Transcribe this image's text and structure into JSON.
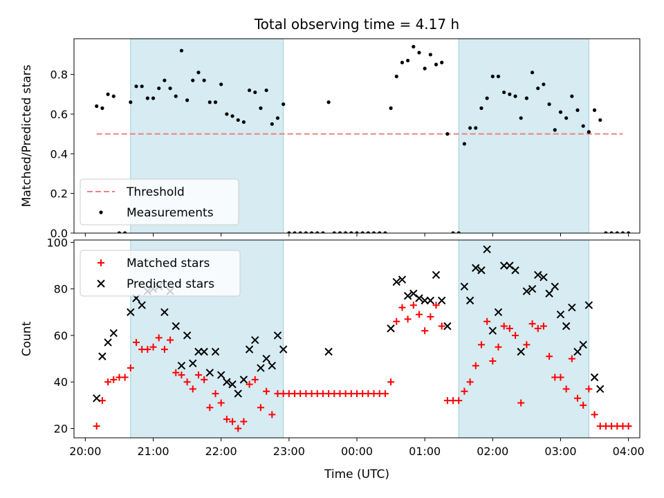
{
  "figure": {
    "title": "Total observing time = 4.17 h"
  },
  "chart_data": [
    {
      "type": "scatter",
      "panel": "top",
      "ylabel": "Matched/Predicted stars",
      "ylim": [
        0,
        0.98
      ],
      "xlim": [
        -10,
        490
      ],
      "yticks": [
        0,
        0.2,
        0.4,
        0.6,
        0.8
      ],
      "ytick_labels": [
        "0.0",
        "0.2",
        "0.4",
        "0.6",
        "0.8"
      ],
      "shaded_regions": [
        [
          40,
          175
        ],
        [
          330,
          445
        ]
      ],
      "threshold": {
        "name": "Threshold",
        "value": 0.5,
        "x_range": [
          10,
          475
        ]
      },
      "legend": {
        "placement": "lower-left",
        "entries": [
          "Threshold",
          "Measurements"
        ]
      },
      "series": [
        {
          "name": "Measurements",
          "points": [
            [
              10,
              0.64
            ],
            [
              15,
              0.63
            ],
            [
              20,
              0.7
            ],
            [
              25,
              0.69
            ],
            [
              30,
              0
            ],
            [
              35,
              0
            ],
            [
              40,
              0.66
            ],
            [
              45,
              0.74
            ],
            [
              50,
              0.74
            ],
            [
              55,
              0.68
            ],
            [
              60,
              0.68
            ],
            [
              65,
              0.73
            ],
            [
              70,
              0.77
            ],
            [
              75,
              0.73
            ],
            [
              80,
              0.69
            ],
            [
              85,
              0.92
            ],
            [
              90,
              0.67
            ],
            [
              95,
              0.77
            ],
            [
              100,
              0.81
            ],
            [
              105,
              0.77
            ],
            [
              110,
              0.66
            ],
            [
              115,
              0.66
            ],
            [
              120,
              0.75
            ],
            [
              125,
              0.6
            ],
            [
              130,
              0.59
            ],
            [
              135,
              0.57
            ],
            [
              140,
              0.56
            ],
            [
              145,
              0.72
            ],
            [
              150,
              0.71
            ],
            [
              155,
              0.63
            ],
            [
              160,
              0.72
            ],
            [
              165,
              0.55
            ],
            [
              170,
              0.58
            ],
            [
              175,
              0.65
            ],
            [
              180,
              0
            ],
            [
              185,
              0
            ],
            [
              190,
              0
            ],
            [
              195,
              0
            ],
            [
              200,
              0
            ],
            [
              205,
              0
            ],
            [
              210,
              0
            ],
            [
              215,
              0.66
            ],
            [
              220,
              0
            ],
            [
              225,
              0
            ],
            [
              230,
              0
            ],
            [
              235,
              0
            ],
            [
              240,
              0
            ],
            [
              245,
              0
            ],
            [
              250,
              0
            ],
            [
              255,
              0
            ],
            [
              260,
              0
            ],
            [
              265,
              0
            ],
            [
              270,
              0.63
            ],
            [
              275,
              0.79
            ],
            [
              280,
              0.86
            ],
            [
              285,
              0.87
            ],
            [
              290,
              0.94
            ],
            [
              295,
              0.91
            ],
            [
              300,
              0.83
            ],
            [
              305,
              0.9
            ],
            [
              310,
              0.85
            ],
            [
              315,
              0.86
            ],
            [
              320,
              0.5
            ],
            [
              325,
              0
            ],
            [
              330,
              0
            ],
            [
              335,
              0.45
            ],
            [
              340,
              0.53
            ],
            [
              345,
              0.53
            ],
            [
              350,
              0.63
            ],
            [
              355,
              0.68
            ],
            [
              360,
              0.79
            ],
            [
              365,
              0.79
            ],
            [
              370,
              0.71
            ],
            [
              375,
              0.7
            ],
            [
              380,
              0.69
            ],
            [
              385,
              0.58
            ],
            [
              390,
              0.68
            ],
            [
              395,
              0.81
            ],
            [
              400,
              0.73
            ],
            [
              405,
              0.75
            ],
            [
              410,
              0.65
            ],
            [
              415,
              0.52
            ],
            [
              420,
              0.61
            ],
            [
              425,
              0.58
            ],
            [
              430,
              0.69
            ],
            [
              435,
              0.62
            ],
            [
              440,
              0.54
            ],
            [
              445,
              0.51
            ],
            [
              450,
              0.62
            ],
            [
              455,
              0.57
            ],
            [
              460,
              0
            ],
            [
              465,
              0
            ],
            [
              470,
              0
            ],
            [
              475,
              0
            ],
            [
              480,
              0
            ]
          ]
        }
      ]
    },
    {
      "type": "scatter",
      "panel": "bottom",
      "ylabel": "Count",
      "xlabel": "Time (UTC)",
      "ylim": [
        16,
        101
      ],
      "xlim": [
        -10,
        490
      ],
      "yticks": [
        20,
        40,
        60,
        80,
        100
      ],
      "ytick_labels": [
        "20",
        "40",
        "60",
        "80",
        "100"
      ],
      "xticks": [
        0,
        60,
        120,
        180,
        240,
        300,
        360,
        420,
        480
      ],
      "xtick_labels": [
        "20:00",
        "21:00",
        "22:00",
        "23:00",
        "00:00",
        "01:00",
        "02:00",
        "03:00",
        "04:00"
      ],
      "shaded_regions": [
        [
          40,
          175
        ],
        [
          330,
          445
        ]
      ],
      "legend": {
        "placement": "upper-left",
        "entries": [
          "Matched stars",
          "Predicted stars"
        ]
      },
      "series": [
        {
          "name": "Matched stars",
          "color": "#ff0000",
          "marker": "plus",
          "points": [
            [
              10,
              21
            ],
            [
              15,
              32
            ],
            [
              20,
              40
            ],
            [
              25,
              41
            ],
            [
              30,
              42
            ],
            [
              35,
              42
            ],
            [
              40,
              46
            ],
            [
              45,
              57
            ],
            [
              50,
              54
            ],
            [
              55,
              54
            ],
            [
              60,
              55
            ],
            [
              65,
              59
            ],
            [
              70,
              54
            ],
            [
              75,
              58
            ],
            [
              80,
              44
            ],
            [
              85,
              43
            ],
            [
              90,
              40
            ],
            [
              95,
              37
            ],
            [
              100,
              43
            ],
            [
              105,
              41
            ],
            [
              110,
              29
            ],
            [
              115,
              35
            ],
            [
              120,
              31
            ],
            [
              125,
              24
            ],
            [
              130,
              23
            ],
            [
              135,
              20
            ],
            [
              140,
              23
            ],
            [
              145,
              39
            ],
            [
              150,
              41
            ],
            [
              155,
              29
            ],
            [
              160,
              36
            ],
            [
              165,
              26
            ],
            [
              170,
              35
            ],
            [
              175,
              35
            ],
            [
              180,
              35
            ],
            [
              185,
              35
            ],
            [
              190,
              35
            ],
            [
              195,
              35
            ],
            [
              200,
              35
            ],
            [
              205,
              35
            ],
            [
              210,
              35
            ],
            [
              215,
              35
            ],
            [
              220,
              35
            ],
            [
              225,
              35
            ],
            [
              230,
              35
            ],
            [
              235,
              35
            ],
            [
              240,
              35
            ],
            [
              245,
              35
            ],
            [
              250,
              35
            ],
            [
              255,
              35
            ],
            [
              260,
              35
            ],
            [
              265,
              35
            ],
            [
              270,
              40
            ],
            [
              275,
              66
            ],
            [
              280,
              72
            ],
            [
              285,
              67
            ],
            [
              290,
              73
            ],
            [
              295,
              69
            ],
            [
              300,
              62
            ],
            [
              305,
              68
            ],
            [
              310,
              73
            ],
            [
              315,
              64
            ],
            [
              320,
              32
            ],
            [
              325,
              32
            ],
            [
              330,
              32
            ],
            [
              335,
              36
            ],
            [
              340,
              40
            ],
            [
              345,
              47
            ],
            [
              350,
              56
            ],
            [
              355,
              66
            ],
            [
              360,
              49
            ],
            [
              365,
              55
            ],
            [
              370,
              64
            ],
            [
              375,
              63
            ],
            [
              380,
              60
            ],
            [
              385,
              31
            ],
            [
              390,
              56
            ],
            [
              395,
              65
            ],
            [
              400,
              63
            ],
            [
              405,
              64
            ],
            [
              410,
              51
            ],
            [
              415,
              42
            ],
            [
              420,
              42
            ],
            [
              425,
              37
            ],
            [
              430,
              50
            ],
            [
              435,
              33
            ],
            [
              440,
              30
            ],
            [
              445,
              37
            ],
            [
              450,
              26
            ],
            [
              455,
              21
            ],
            [
              460,
              21
            ],
            [
              465,
              21
            ],
            [
              470,
              21
            ],
            [
              475,
              21
            ],
            [
              480,
              21
            ]
          ]
        },
        {
          "name": "Predicted stars",
          "color": "#000000",
          "marker": "x",
          "points": [
            [
              10,
              33
            ],
            [
              15,
              51
            ],
            [
              20,
              57
            ],
            [
              25,
              61
            ],
            [
              40,
              70
            ],
            [
              45,
              76
            ],
            [
              50,
              73
            ],
            [
              55,
              79
            ],
            [
              60,
              80
            ],
            [
              65,
              81
            ],
            [
              70,
              70
            ],
            [
              75,
              79
            ],
            [
              80,
              64
            ],
            [
              85,
              47
            ],
            [
              90,
              60
            ],
            [
              95,
              48
            ],
            [
              100,
              53
            ],
            [
              105,
              53
            ],
            [
              110,
              44
            ],
            [
              115,
              53
            ],
            [
              120,
              43
            ],
            [
              125,
              40
            ],
            [
              130,
              39
            ],
            [
              135,
              35
            ],
            [
              140,
              41
            ],
            [
              145,
              54
            ],
            [
              150,
              58
            ],
            [
              155,
              46
            ],
            [
              160,
              50
            ],
            [
              165,
              47
            ],
            [
              170,
              60
            ],
            [
              175,
              54
            ],
            [
              215,
              53
            ],
            [
              270,
              63
            ],
            [
              275,
              83
            ],
            [
              280,
              84
            ],
            [
              285,
              77
            ],
            [
              290,
              78
            ],
            [
              295,
              76
            ],
            [
              300,
              75
            ],
            [
              305,
              75
            ],
            [
              310,
              86
            ],
            [
              315,
              75
            ],
            [
              320,
              64
            ],
            [
              335,
              81
            ],
            [
              340,
              75
            ],
            [
              345,
              89
            ],
            [
              350,
              88
            ],
            [
              355,
              97
            ],
            [
              360,
              62
            ],
            [
              365,
              70
            ],
            [
              370,
              90
            ],
            [
              375,
              90
            ],
            [
              380,
              88
            ],
            [
              385,
              53
            ],
            [
              390,
              79
            ],
            [
              395,
              80
            ],
            [
              400,
              86
            ],
            [
              405,
              85
            ],
            [
              410,
              78
            ],
            [
              415,
              81
            ],
            [
              420,
              69
            ],
            [
              425,
              64
            ],
            [
              430,
              72
            ],
            [
              435,
              53
            ],
            [
              440,
              56
            ],
            [
              445,
              73
            ],
            [
              450,
              42
            ],
            [
              455,
              37
            ]
          ]
        }
      ]
    }
  ]
}
